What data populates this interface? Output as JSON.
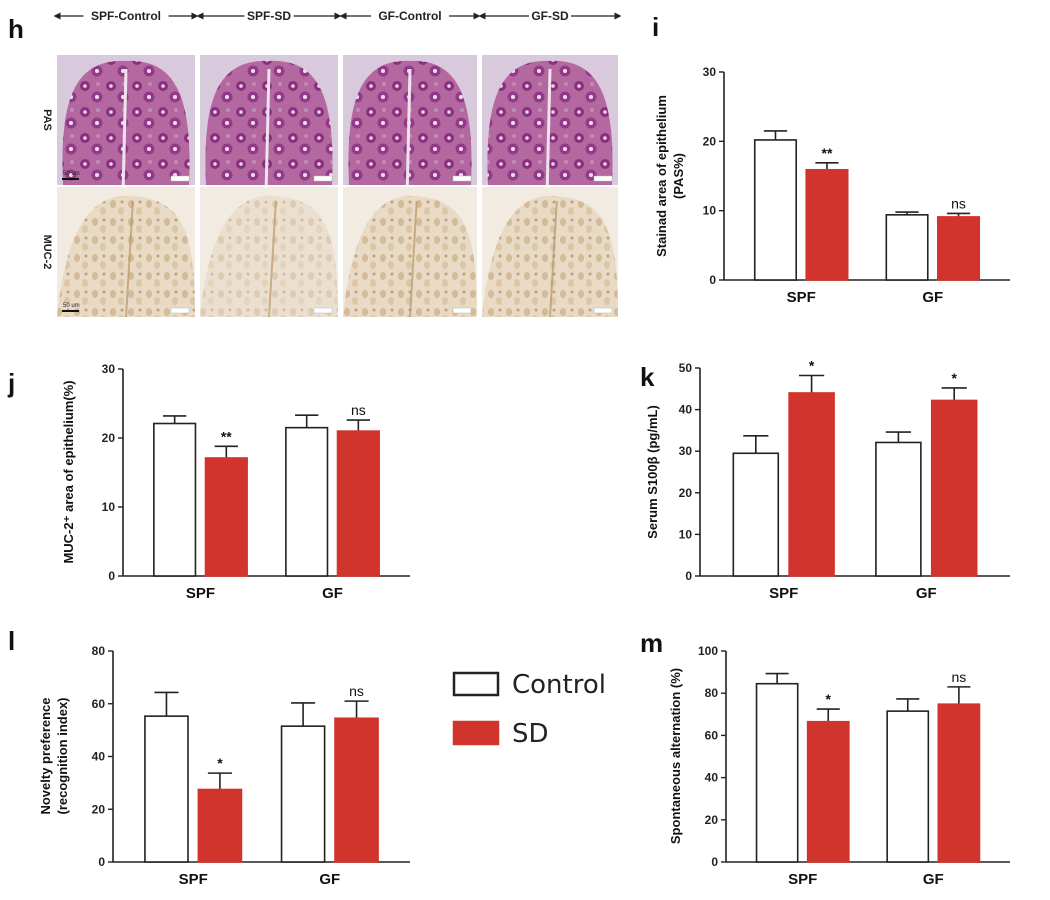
{
  "panel_h": {
    "label": "h",
    "columns": [
      "SPF-Control",
      "SPF-SD",
      "GF-Control",
      "GF-SD"
    ],
    "rows": [
      "PAS",
      "MUC-2"
    ],
    "scale_bar": "50 um",
    "colors": {
      "pas_bg": "#d8c9dc",
      "pas_tissue": "#a0508f",
      "pas_dark": "#7a2a72",
      "muc_bg": "#f1ebe2",
      "muc_tissue": "#dcc8a8",
      "muc_dark": "#b08a5a"
    }
  },
  "legend": {
    "items": [
      {
        "label": "Control",
        "fill": "#ffffff",
        "stroke": "#222222"
      },
      {
        "label": "SD",
        "fill": "#d1342c",
        "stroke": "#d1342c"
      }
    ]
  },
  "colors": {
    "control": "#ffffff",
    "sd": "#d1342c",
    "axis": "#222222"
  },
  "chart_data": [
    {
      "id": "i",
      "label": "i",
      "type": "bar",
      "categories": [
        "SPF",
        "GF"
      ],
      "series": [
        {
          "name": "Control",
          "values": [
            20.2,
            9.4
          ],
          "errors": [
            1.3,
            0.4
          ]
        },
        {
          "name": "SD",
          "values": [
            15.9,
            9.1
          ],
          "errors": [
            1.0,
            0.5
          ]
        }
      ],
      "significance": [
        "**",
        "ns"
      ],
      "ylabel": [
        "Stainad area of epithelium",
        "(PAS%)"
      ],
      "ylim": [
        0,
        30
      ],
      "yticks": [
        0,
        10,
        20,
        30
      ]
    },
    {
      "id": "j",
      "label": "j",
      "type": "bar",
      "categories": [
        "SPF",
        "GF"
      ],
      "series": [
        {
          "name": "Control",
          "values": [
            22.1,
            21.5
          ],
          "errors": [
            1.1,
            1.8
          ]
        },
        {
          "name": "SD",
          "values": [
            17.1,
            21.0
          ],
          "errors": [
            1.7,
            1.6
          ]
        }
      ],
      "significance": [
        "**",
        "ns"
      ],
      "ylabel": [
        "MUC-2⁺ area of epithelium(%)"
      ],
      "ylim": [
        0,
        30
      ],
      "yticks": [
        0,
        10,
        20,
        30
      ]
    },
    {
      "id": "k",
      "label": "k",
      "type": "bar",
      "categories": [
        "SPF",
        "GF"
      ],
      "series": [
        {
          "name": "Control",
          "values": [
            29.5,
            32.1
          ],
          "errors": [
            4.2,
            2.5
          ]
        },
        {
          "name": "SD",
          "values": [
            44.0,
            42.2
          ],
          "errors": [
            4.2,
            3.0
          ]
        }
      ],
      "significance": [
        "*",
        "*"
      ],
      "ylabel": [
        "Serum S100β (pg/mL)"
      ],
      "ylim": [
        0,
        50
      ],
      "yticks": [
        0,
        10,
        20,
        30,
        40,
        50
      ]
    },
    {
      "id": "l",
      "label": "l",
      "type": "bar",
      "categories": [
        "SPF",
        "GF"
      ],
      "series": [
        {
          "name": "Control",
          "values": [
            55.3,
            51.5
          ],
          "errors": [
            9.0,
            8.8
          ]
        },
        {
          "name": "SD",
          "values": [
            27.5,
            54.5
          ],
          "errors": [
            6.2,
            6.5
          ]
        }
      ],
      "significance": [
        "*",
        "ns"
      ],
      "ylabel": [
        "Novelty preference",
        "(recognition index)"
      ],
      "ylim": [
        0,
        80
      ],
      "yticks": [
        0,
        20,
        40,
        60,
        80
      ]
    },
    {
      "id": "m",
      "label": "m",
      "type": "bar",
      "categories": [
        "SPF",
        "GF"
      ],
      "series": [
        {
          "name": "Control",
          "values": [
            84.5,
            71.5
          ],
          "errors": [
            4.8,
            5.8
          ]
        },
        {
          "name": "SD",
          "values": [
            66.5,
            74.8
          ],
          "errors": [
            6.0,
            8.2
          ]
        }
      ],
      "significance": [
        "*",
        "ns"
      ],
      "ylabel": [
        "Spontaneous alternation (%)"
      ],
      "ylim": [
        0,
        100
      ],
      "yticks": [
        0,
        20,
        40,
        60,
        80,
        100
      ]
    }
  ]
}
